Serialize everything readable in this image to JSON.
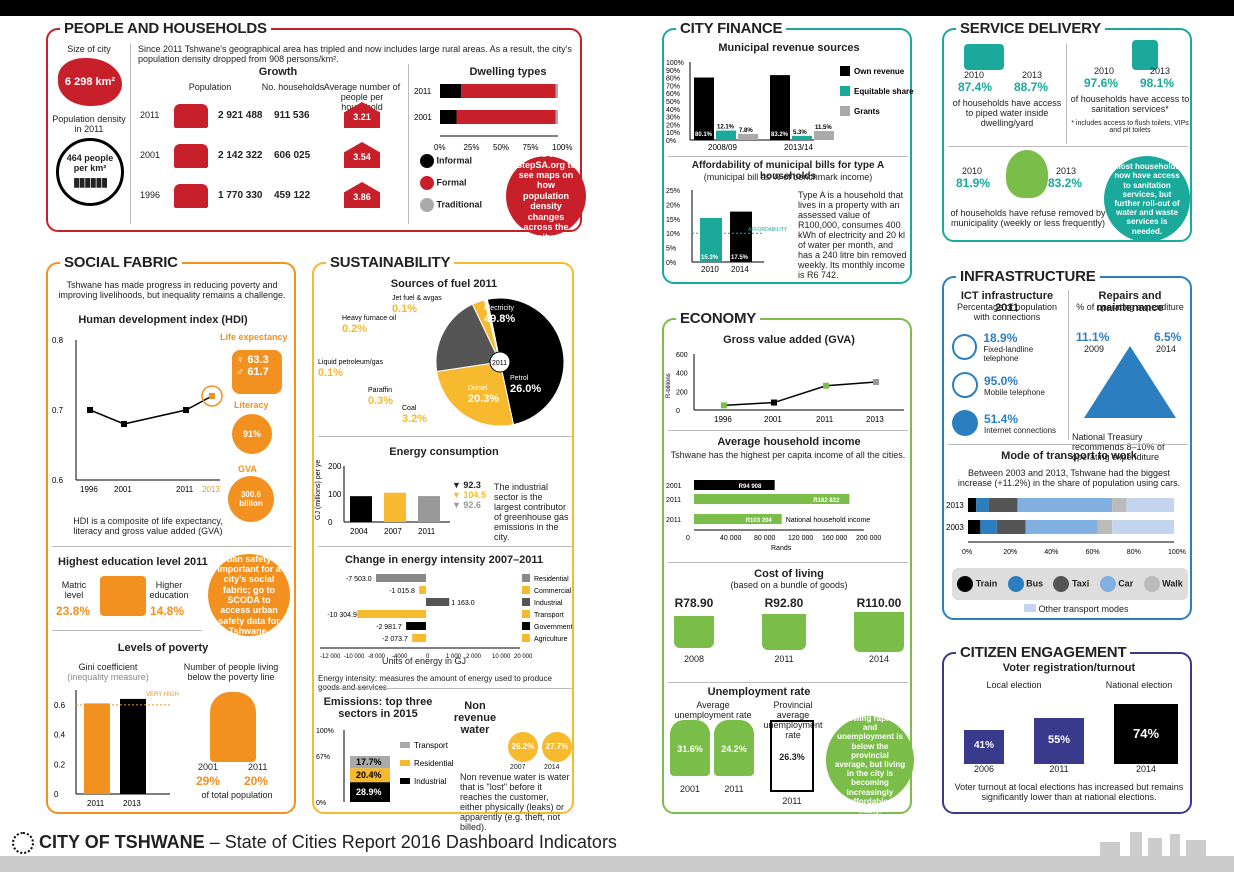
{
  "people": {
    "title": "PEOPLE AND HOUSEHOLDS",
    "size_label": "Size of city",
    "size_value": "6 298 km²",
    "density_label": "Population density in 2011",
    "density_value": "464 people per km²",
    "intro": "Since 2011 Tshwane's geographical area has tripled and now includes large rural areas. As a result, the city's population density dropped from 908 persons/km².",
    "growth_title": "Growth",
    "col_pop": "Population",
    "col_hh": "No. households",
    "col_avg": "Average number of people per household",
    "rows": [
      {
        "year": "2011",
        "pop": "2 921 488",
        "hh": "911 536",
        "avg": "3.21"
      },
      {
        "year": "2001",
        "pop": "2 142 322",
        "hh": "606 025",
        "avg": "3.54"
      },
      {
        "year": "1996",
        "pop": "1 770 330",
        "hh": "459 122",
        "avg": "3.86"
      }
    ],
    "dwelling_title": "Dwelling types",
    "legend": [
      "Informal",
      "Formal",
      "Traditional"
    ],
    "callout": "Go to StepSA.org to see maps on how population density changes across the city."
  },
  "social": {
    "title": "SOCIAL FABRIC",
    "intro": "Tshwane has made progress in reducing poverty and improving livelihoods, but inequality remains a challenge.",
    "hdi_title": "Human development index (HDI)",
    "life_label": "Life expectancy",
    "female": "63.3",
    "male": "61.7",
    "literacy_label": "Literacy",
    "literacy": "91%",
    "gva_label": "GVA",
    "gva": "300.6 billion",
    "hdi_note": "HDI is a composite of life expectancy, literacy and gross value added (GVA)",
    "edu_title": "Highest education level 2011",
    "matric_label": "Matric level",
    "matric": "23.8%",
    "higher_label": "Higher education",
    "higher": "14.8%",
    "callout": "Urban safety is important for a city's social fabric; go to SCODA to access urban safety data for Tshwane.",
    "poverty_title": "Levels of poverty",
    "gini_label": "Gini coefficient",
    "gini_sub": "(inequality measure)",
    "very_high": "VERY HIGH INEQUALITY",
    "poor_label": "Number of people living below the poverty line",
    "poor_2001": "29%",
    "poor_2011": "20%",
    "poor_y1": "2001",
    "poor_y2": "2011",
    "poor_note": "of total population"
  },
  "sust": {
    "title": "SUSTAINABILITY",
    "fuel_title": "Sources of fuel 2011",
    "energy_title": "Energy consumption",
    "energy_ylabel": "GJ (millions) per year",
    "energy_note": "The industrial sector is the largest contributor of greenhouse gas emissions in the city.",
    "energy_legend": [
      "92.3",
      "104.5",
      "92.6"
    ],
    "intensity_title": "Change in energy intensity 2007–2011",
    "intensity_xlabel": "Units of energy in GJ",
    "intensity_note": "Energy intensity: measures the amount of energy used to produce goods and services",
    "intensity_legend": [
      "Residential",
      "Commercial",
      "Industrial",
      "Transport",
      "Government",
      "Agriculture"
    ],
    "emissions_title": "Emissions: top three sectors in 2015",
    "emissions_legend": [
      "Transport",
      "Residential",
      "Industrial"
    ],
    "nrw_title": "Non revenue water",
    "nrw_2007": "26.2%",
    "nrw_2014": "27.7%",
    "nrw_y1": "2007",
    "nrw_y2": "2014",
    "nrw_note": "Non revenue water is water that is \"lost\" before it reaches the customer, either physically (leaks) or apparently (e.g. theft, not billed)."
  },
  "finance": {
    "title": "CITY FINANCE",
    "rev_title": "Municipal revenue sources",
    "legend": [
      "Own revenue",
      "Equitable share",
      "Grants"
    ],
    "afford_title": "Affordability of municipal bills for type A households",
    "afford_sub": "(municipal bill as % of benchmark income)",
    "afford_line": "AFFORDABILITY",
    "afford_note": "Type A is a household that lives in a property with an assessed value of R100,000, consumes 400 kWh of electricity and 20 kl of water per month, and has a 240 litre bin removed weekly. Its monthly income is R6 742."
  },
  "economy": {
    "title": "ECONOMY",
    "gva_title": "Gross value added (GVA)",
    "gva_ylabel": "R-billions",
    "income_title": "Average household income",
    "income_sub": "Tshwane has the highest per capita income of all the cities.",
    "income_xlabel": "Rands",
    "income_note": "National household income",
    "col_title": "Cost of living",
    "col_sub": "(based on a bundle of goods)",
    "col": [
      {
        "v": "R78.90",
        "y": "2008"
      },
      {
        "v": "R92.80",
        "y": "2011"
      },
      {
        "v": "R110.00",
        "y": "2014"
      }
    ],
    "unemp_title": "Unemployment rate",
    "unemp_avg": "Average unemployment rate",
    "unemp_prov": "Provincial average unemployment rate",
    "unemp": [
      {
        "v": "31.6%",
        "y": "2001"
      },
      {
        "v": "24.2%",
        "y": "2011"
      }
    ],
    "unemp_prov_v": "26.3%",
    "unemp_prov_y": "2011",
    "callout": "The economy is growing rapidly and unemployment is below the provincial average, but living in the city is becoming increasingly unaffordable for many."
  },
  "service": {
    "title": "SERVICE DELIVERY",
    "water_y1": "2010",
    "water_y2": "2013",
    "water_v1": "87.4%",
    "water_v2": "88.7%",
    "water_note": "of households have access to piped water inside dwelling/yard",
    "san_y1": "2010",
    "san_y2": "2013",
    "san_v1": "97.6%",
    "san_v2": "98.1%",
    "san_note": "of households have access to sanitation services*",
    "san_foot": "* includes access to flush toilets, VIPs and pit toilets",
    "ref_y1": "2010",
    "ref_y2": "2013",
    "ref_v1": "81.9%",
    "ref_v2": "83.2%",
    "ref_note": "of households have refuse removed by municipality (weekly or less frequently)",
    "callout": "Most households now have access to sanitation services, but further roll-out of water and waste services is needed."
  },
  "infra": {
    "title": "INFRASTRUCTURE",
    "ict_title": "ICT infrastructure 2011",
    "ict_sub": "Percentage of population with connections",
    "ict": [
      {
        "v": "18.9%",
        "l": "Fixed-landline telephone"
      },
      {
        "v": "95.0%",
        "l": "Mobile telephone"
      },
      {
        "v": "51.4%",
        "l": "Internet connections"
      }
    ],
    "rm_title": "Repairs and maintenance",
    "rm_sub": "% of operating expenditure",
    "rm_v1": "11.1%",
    "rm_y1": "2009",
    "rm_v2": "6.5%",
    "rm_y2": "2014",
    "rm_note": "National Treasury recommends 8–10% of operating expenditure",
    "mode_title": "Mode of transport to work",
    "mode_sub": "Between 2003 and 2013, Tshwane had the biggest increase (+11.2%) in the share of population using cars.",
    "modes": [
      "Train",
      "Bus",
      "Taxi",
      "Car",
      "Walk"
    ],
    "other": "Other transport modes"
  },
  "citizen": {
    "title": "CITIZEN ENGAGEMENT",
    "voter_title": "Voter registration/turnout",
    "local": "Local election",
    "national": "National election",
    "boxes": [
      {
        "v": "41%",
        "y": "2006"
      },
      {
        "v": "55%",
        "y": "2011"
      },
      {
        "v": "74%",
        "y": "2014"
      }
    ],
    "note": "Voter turnout at local elections has increased but remains significantly lower than at national elections."
  },
  "footer": {
    "city": "CITY OF TSHWANE",
    "rest": " – State of Cities Report 2016 Dashboard Indicators"
  },
  "chart_data": [
    {
      "id": "dwelling",
      "type": "bar",
      "title": "Dwelling types",
      "categories": [
        "2011",
        "2001"
      ],
      "series": [
        {
          "name": "Informal",
          "values": [
            0.18,
            0.14
          ]
        },
        {
          "name": "Formal",
          "values": [
            0.8,
            0.84
          ]
        },
        {
          "name": "Traditional",
          "values": [
            0.02,
            0.02
          ]
        }
      ],
      "xlim": [
        0,
        1
      ],
      "xticks": [
        "0%",
        "25%",
        "50%",
        "75%",
        "100%"
      ]
    },
    {
      "id": "hdi",
      "type": "line",
      "title": "Human development index (HDI)",
      "x": [
        "1996",
        "2001",
        "2011",
        "2013"
      ],
      "values": [
        0.7,
        0.68,
        0.7,
        0.72
      ],
      "ylim": [
        0.6,
        0.8
      ],
      "yticks": [
        "0.6",
        "0.7",
        "0.8"
      ]
    },
    {
      "id": "gini",
      "type": "bar",
      "title": "Gini coefficient",
      "categories": [
        "2011",
        "2013"
      ],
      "values": [
        0.61,
        0.64
      ],
      "ylim": [
        0,
        0.7
      ],
      "yticks": [
        "0",
        "0.2",
        "0.4",
        "0.6"
      ],
      "annotation": "VERY HIGH INEQUALITY"
    },
    {
      "id": "fuel",
      "type": "pie",
      "title": "Sources of fuel 2011",
      "center": "2011",
      "series": [
        {
          "name": "Electricity",
          "value": 49.8
        },
        {
          "name": "Petrol",
          "value": 26.0
        },
        {
          "name": "Diesel",
          "value": 20.3
        },
        {
          "name": "Coal",
          "value": 3.2
        },
        {
          "name": "Paraffin",
          "value": 0.3
        },
        {
          "name": "Liquid petroleum/gas",
          "value": 0.1
        },
        {
          "name": "Heavy furnace oil",
          "value": 0.2
        },
        {
          "name": "Jet fuel & avgas",
          "value": 0.1
        }
      ]
    },
    {
      "id": "energy",
      "type": "bar",
      "title": "Energy consumption",
      "categories": [
        "2004",
        "2007",
        "2011"
      ],
      "values": [
        92.3,
        104.5,
        92.6
      ],
      "ylim": [
        0,
        200
      ],
      "yticks": [
        "0",
        "100",
        "200"
      ]
    },
    {
      "id": "intensity",
      "type": "bar",
      "title": "Change in energy intensity 2007–2011",
      "series": [
        {
          "name": "Residential",
          "value": -7503.0
        },
        {
          "name": "Commercial",
          "value": -1015.8
        },
        {
          "name": "Industrial",
          "value": 1163.0
        },
        {
          "name": "Transport",
          "value": -10304.9
        },
        {
          "name": "Government",
          "value": -2981.7
        },
        {
          "name": "Agriculture",
          "value": -2073.7
        }
      ],
      "xticks": [
        "-12 000",
        "-10 000",
        "-8 000",
        "-4000",
        "0",
        "1 000",
        "2 000",
        "10 000",
        "20 000"
      ]
    },
    {
      "id": "emissions",
      "type": "bar",
      "title": "Emissions: top three sectors in 2015",
      "series": [
        {
          "name": "Transport",
          "value": 17.7
        },
        {
          "name": "Residential",
          "value": 20.4
        },
        {
          "name": "Industrial",
          "value": 28.9
        }
      ],
      "yticks": [
        "0%",
        "67%",
        "100%"
      ]
    },
    {
      "id": "revenue",
      "type": "bar",
      "title": "Municipal revenue sources",
      "categories": [
        "2008/09",
        "2013/14"
      ],
      "series": [
        {
          "name": "Own revenue",
          "values": [
            80.1,
            83.2
          ]
        },
        {
          "name": "Equitable share",
          "values": [
            12.1,
            5.3
          ]
        },
        {
          "name": "Grants",
          "values": [
            7.8,
            11.5
          ]
        }
      ],
      "ylim": [
        0,
        100
      ],
      "yticks": [
        "0%",
        "10%",
        "20%",
        "30%",
        "40%",
        "50%",
        "60%",
        "70%",
        "80%",
        "90%",
        "100%"
      ]
    },
    {
      "id": "afford",
      "type": "bar",
      "title": "Affordability of municipal bills for type A households",
      "categories": [
        "2010",
        "2014"
      ],
      "values": [
        15.3,
        17.5
      ],
      "affordability": 10,
      "ylim": [
        0,
        25
      ],
      "yticks": [
        "0%",
        "5%",
        "10%",
        "15%",
        "20%",
        "25%"
      ]
    },
    {
      "id": "gva",
      "type": "line",
      "title": "Gross value added (GVA)",
      "x": [
        "1996",
        "2001",
        "2011",
        "2013"
      ],
      "values": [
        50,
        80,
        260,
        300
      ],
      "ylim": [
        0,
        600
      ],
      "yticks": [
        "0",
        "200",
        "400",
        "600"
      ],
      "ylabel": "R-billions"
    },
    {
      "id": "income",
      "type": "bar",
      "title": "Average household income",
      "categories": [
        "2001",
        "2011",
        "2011"
      ],
      "values": [
        94908,
        182822,
        103204
      ],
      "labels": [
        "R94 908",
        "R182 822",
        "R103 204"
      ],
      "xlim": [
        0,
        200000
      ],
      "xticks": [
        "0",
        "40 000",
        "80 000",
        "120 000",
        "160 000",
        "200 000"
      ],
      "xlabel": "Rands"
    },
    {
      "id": "transport",
      "type": "bar",
      "title": "Mode of transport to work",
      "categories": [
        "2013",
        "2003"
      ],
      "series": [
        {
          "name": "Train",
          "values": [
            4,
            6
          ]
        },
        {
          "name": "Bus",
          "values": [
            6,
            8
          ]
        },
        {
          "name": "Taxi",
          "values": [
            14,
            14
          ]
        },
        {
          "name": "Car",
          "values": [
            46,
            35
          ]
        },
        {
          "name": "Walk",
          "values": [
            7,
            7
          ]
        },
        {
          "name": "Other transport modes",
          "values": [
            23,
            30
          ]
        }
      ],
      "xticks": [
        "0%",
        "20%",
        "40%",
        "60%",
        "80%",
        "100%"
      ]
    }
  ]
}
